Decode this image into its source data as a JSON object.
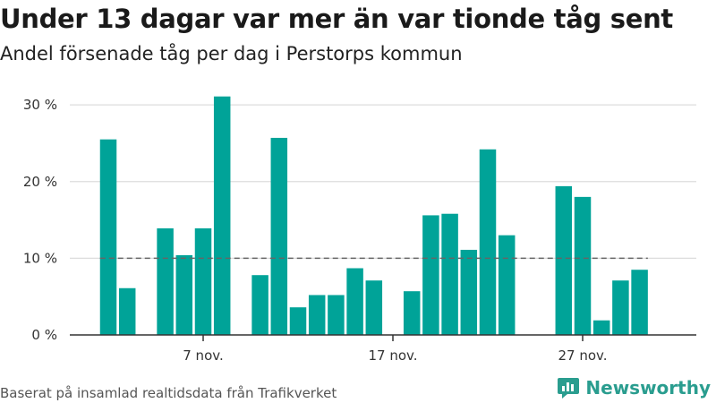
{
  "header": {
    "title": "Under 13 dagar var mer än var tionde tåg sent",
    "subtitle": "Andel försenade tåg per dag i Perstorps kommun"
  },
  "footer": {
    "source": "Baserat på insamlad realtidsdata från Trafikverket",
    "brand": "Newsworthy"
  },
  "colors": {
    "bar": "#00a398",
    "reference": "#666666",
    "grid": "#dddddd"
  },
  "chart_data": {
    "type": "bar",
    "title": "Under 13 dagar var mer än var tionde tåg sent",
    "subtitle": "Andel försenade tåg per dag i Perstorps kommun",
    "ylim": [
      0,
      32
    ],
    "yticks": [
      0,
      10,
      20,
      30
    ],
    "ytick_labels": [
      "0 %",
      "10 %",
      "20 %",
      "30 %"
    ],
    "xtick_labels": [
      {
        "day": 7,
        "label": "7 nov."
      },
      {
        "day": 17,
        "label": "17 nov."
      },
      {
        "day": 27,
        "label": "27 nov."
      }
    ],
    "reference_line": 10,
    "days": [
      2,
      3,
      4,
      5,
      6,
      7,
      8,
      9,
      10,
      11,
      12,
      13,
      14,
      15,
      16,
      17,
      18,
      19,
      20,
      21,
      22,
      23,
      24,
      25,
      26,
      27,
      28,
      29,
      30
    ],
    "values": [
      25.5,
      6.1,
      null,
      13.9,
      10.4,
      13.9,
      31.1,
      null,
      7.8,
      25.7,
      3.6,
      5.2,
      5.2,
      8.7,
      7.1,
      null,
      5.7,
      15.6,
      15.8,
      11.1,
      24.2,
      13.0,
      null,
      null,
      19.4,
      18.0,
      1.9,
      7.1,
      8.5
    ]
  }
}
